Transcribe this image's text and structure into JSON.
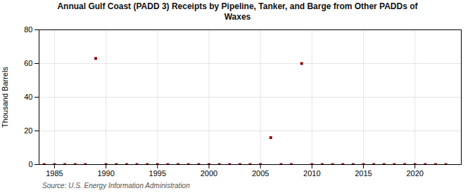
{
  "chart_data": {
    "type": "scatter",
    "title": "Annual Gulf Coast (PADD 3) Receipts by Pipeline, Tanker, and Barge from Other PADDs of\nWaxes",
    "y_label": "Thousand Barrels",
    "annotation": "Source: U.S. Energy Information Administration",
    "x": [
      1984,
      1985,
      1986,
      1987,
      1988,
      1989,
      1990,
      1991,
      1992,
      1993,
      1994,
      1995,
      1996,
      1997,
      1998,
      1999,
      2000,
      2001,
      2002,
      2003,
      2004,
      2005,
      2006,
      2007,
      2008,
      2009,
      2010,
      2011,
      2012,
      2013,
      2014,
      2015,
      2016,
      2017,
      2018,
      2019,
      2020,
      2021,
      2022,
      2023
    ],
    "values": [
      0,
      0,
      0,
      0,
      0,
      63,
      0,
      0,
      0,
      0,
      0,
      0,
      0,
      0,
      0,
      0,
      0,
      0,
      0,
      0,
      0,
      0,
      16,
      0,
      0,
      60,
      0,
      0,
      0,
      0,
      0,
      0,
      0,
      0,
      0,
      0,
      0,
      0,
      0,
      0
    ],
    "color": "#8b0000",
    "marker": "square",
    "xlim": [
      1983.5,
      2024.5
    ],
    "ylim": [
      0,
      80
    ],
    "xticks": [
      1985,
      1990,
      1995,
      2000,
      2005,
      2010,
      2015,
      2020
    ],
    "yticks": [
      0,
      20,
      40,
      60,
      80
    ],
    "grid": true
  }
}
